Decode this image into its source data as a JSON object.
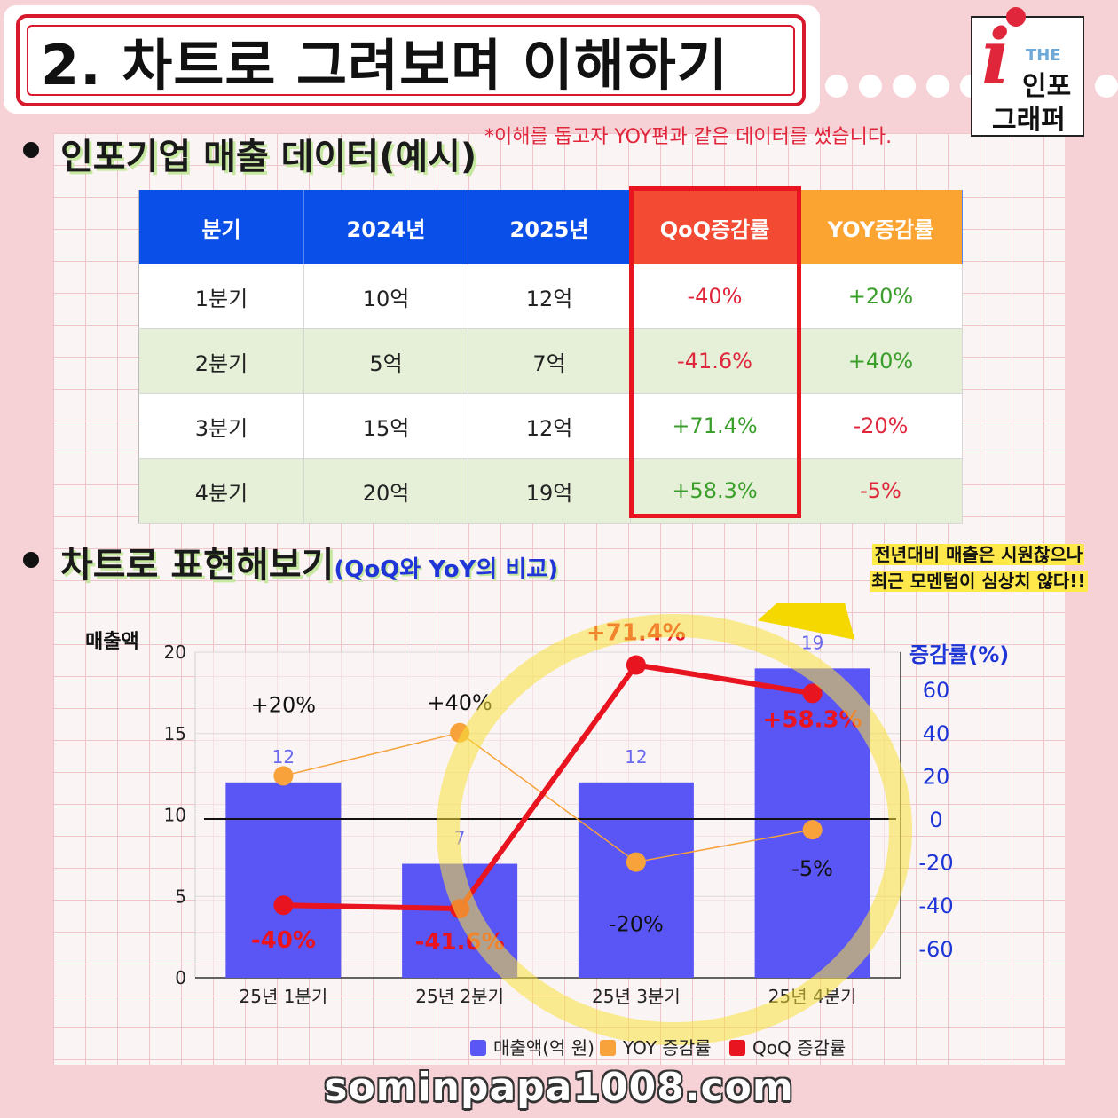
{
  "header": {
    "title": "2. 차트로 그려보며 이해하기"
  },
  "logo": {
    "the": "THE",
    "line1": "인포",
    "line2": "그래퍼"
  },
  "section1": {
    "title": "인포기업 매출 데이터(예시)"
  },
  "note": "*이해를 돕고자 YOY편과 같은 데이터를 썼습니다.",
  "table": {
    "headers": [
      "분기",
      "2024년",
      "2025년",
      "QoQ증감률",
      "YOY증감률"
    ],
    "rows": [
      [
        "1분기",
        "10억",
        "12억",
        "-40%",
        "+20%"
      ],
      [
        "2분기",
        "5억",
        "7억",
        "-41.6%",
        "+40%"
      ],
      [
        "3분기",
        "15억",
        "12억",
        "+71.4%",
        "-20%"
      ],
      [
        "4분기",
        "20억",
        "19억",
        "+58.3%",
        "-5%"
      ]
    ]
  },
  "section2": {
    "title": "차트로 표현해보기",
    "subtitle": "(QoQ와 YoY의 비교)"
  },
  "callout": {
    "line1": "전년대비 매출은 시원찮으나",
    "line2": "최근 모멘텀이 심상치 않다!!"
  },
  "chart_data": {
    "type": "bar",
    "categories": [
      "25년 1분기",
      "25년 2분기",
      "25년 3분기",
      "25년 4분기"
    ],
    "ylabel": "매출액",
    "y2label": "증감률(%)",
    "ylim": [
      0,
      20
    ],
    "yticks": [
      0,
      5,
      10,
      15,
      20
    ],
    "y2ticks": [
      60,
      40,
      20,
      0,
      -20,
      -40,
      -60
    ],
    "series": [
      {
        "name": "매출액(억 원)",
        "kind": "bar",
        "axis": "left",
        "color": "#5a55f5",
        "values": [
          12,
          7,
          12,
          19
        ],
        "labels": [
          "12",
          "7",
          "12",
          "19"
        ]
      },
      {
        "name": "YOY 증감률",
        "kind": "line",
        "axis": "right",
        "color": "#f7a23a",
        "values": [
          20,
          40,
          -20,
          -5
        ],
        "labels": [
          "+20%",
          "+40%",
          "-20%",
          "-5%"
        ]
      },
      {
        "name": "QoQ 증감률",
        "kind": "line",
        "axis": "right",
        "color": "#e8141f",
        "values": [
          -40,
          -41.6,
          71.4,
          58.3
        ],
        "labels": [
          "-40%",
          "-41.6%",
          "+71.4%",
          "+58.3%"
        ]
      }
    ],
    "legend_position": "bottom"
  },
  "footer": "sominpapa1008.com",
  "colors": {
    "accent_red": "#e0263b",
    "header_blue": "#0a4fe8",
    "qoq_header": "#f24a33",
    "yoy_header": "#fba432"
  }
}
